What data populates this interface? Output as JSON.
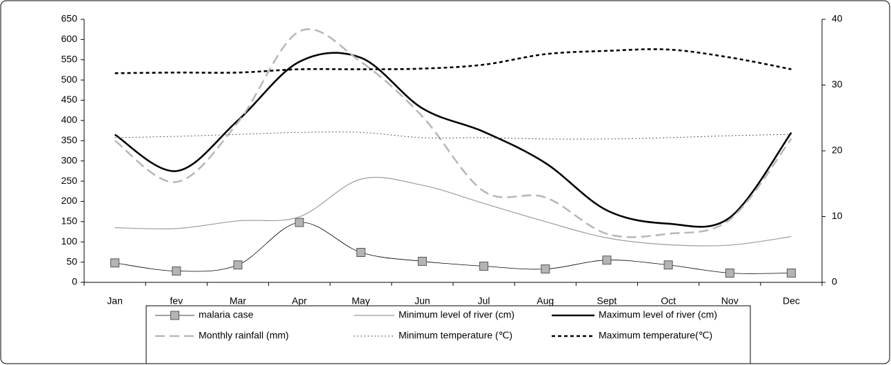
{
  "chart_data": {
    "type": "line",
    "categories": [
      "Jan",
      "fev",
      "Mar",
      "Apr",
      "May",
      "Jun",
      "Jul",
      "Aug",
      "Sept",
      "Oct",
      "Nov",
      "Dec"
    ],
    "ylim": [
      0,
      650
    ],
    "yticks": [
      0,
      50,
      100,
      150,
      200,
      250,
      300,
      350,
      400,
      450,
      500,
      550,
      600,
      650
    ],
    "y2lim": [
      0,
      40
    ],
    "y2ticks": [
      0,
      10,
      20,
      30,
      40
    ],
    "series": [
      {
        "name": "malaria case",
        "color": "#000000",
        "marker": "square",
        "marker_color": "#b4b4b4",
        "width": 0.8,
        "dash": "none",
        "values": [
          48,
          28,
          43,
          148,
          74,
          52,
          40,
          33,
          55,
          43,
          23,
          23
        ]
      },
      {
        "name": "Minimum level of river (cm)",
        "color": "#9a9a9a",
        "width": 1.2,
        "dash": "none",
        "values": [
          135,
          133,
          152,
          162,
          255,
          240,
          195,
          150,
          110,
          93,
          92,
          113
        ]
      },
      {
        "name": "Maximum level of river (cm)",
        "color": "#000000",
        "width": 2.6,
        "dash": "none",
        "values": [
          365,
          275,
          400,
          545,
          555,
          430,
          372,
          295,
          178,
          145,
          160,
          370
        ]
      },
      {
        "name": "Monthly rainfall (mm)",
        "color": "#b8b8b8",
        "width": 2.6,
        "dash": "14 7",
        "values": [
          350,
          248,
          395,
          620,
          545,
          410,
          225,
          210,
          120,
          120,
          155,
          355
        ]
      },
      {
        "name": "Minimum temperature (℃)",
        "color": "#555555",
        "width": 1,
        "dash": "2 3",
        "axis": "y2",
        "values": [
          22.0,
          22.2,
          22.5,
          22.8,
          22.8,
          22.0,
          22.0,
          21.8,
          21.8,
          22.0,
          22.3,
          22.5
        ]
      },
      {
        "name": "Maximum temperature(℃)",
        "color": "#000000",
        "width": 2.6,
        "dash": "5 4",
        "axis": "y2",
        "values": [
          31.8,
          31.9,
          31.9,
          32.4,
          32.4,
          32.5,
          33.1,
          34.7,
          35.2,
          35.4,
          34.2,
          32.4
        ]
      }
    ]
  }
}
